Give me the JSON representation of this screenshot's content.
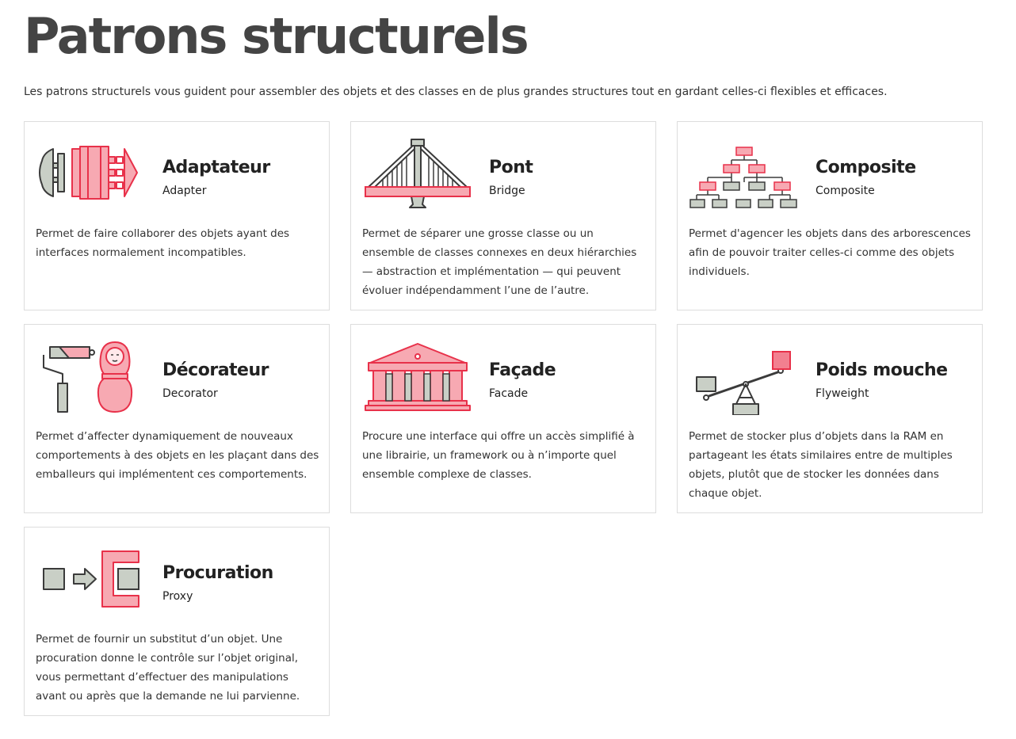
{
  "page": {
    "title": "Patrons structurels",
    "intro": "Les patrons structurels vous guident pour assembler des objets et des classes en de plus grandes structures tout en gardant celles-ci flexibles et efficaces."
  },
  "colors": {
    "accent_red": "#e8314a",
    "accent_pink": "#f7a9b2",
    "gray_fill": "#c9cfc6",
    "outline": "#3b3b3b"
  },
  "patterns": [
    {
      "name": "Adaptateur",
      "english": "Adapter",
      "icon": "adapter-illustration",
      "description": "Permet de faire collaborer des objets ayant des interfaces normalement incompatibles."
    },
    {
      "name": "Pont",
      "english": "Bridge",
      "icon": "bridge-illustration",
      "description": "Permet de séparer une grosse classe ou un ensemble de classes connexes en deux hiérarchies — abstraction et implémentation — qui peuvent évoluer indépendamment l’une de l’autre."
    },
    {
      "name": "Composite",
      "english": "Composite",
      "icon": "composite-tree-illustration",
      "description": "Permet d'agencer les objets dans des arborescences afin de pouvoir traiter celles-ci comme des objets individuels."
    },
    {
      "name": "Décorateur",
      "english": "Decorator",
      "icon": "decorator-illustration",
      "description": "Permet d’affecter dynamiquement de nouveaux comportements à des objets en les plaçant dans des emballeurs qui implémentent ces comportements."
    },
    {
      "name": "Façade",
      "english": "Facade",
      "icon": "facade-building-illustration",
      "description": "Procure une interface qui offre un accès simplifié à une librairie, un framework ou à n’importe quel ensemble complexe de classes."
    },
    {
      "name": "Poids mouche",
      "english": "Flyweight",
      "icon": "flyweight-seesaw-illustration",
      "description": "Permet de stocker plus d’objets dans la RAM en partageant les états similaires entre de multiples objets, plutôt que de stocker les données dans chaque objet."
    },
    {
      "name": "Procuration",
      "english": "Proxy",
      "icon": "proxy-illustration",
      "description": "Permet de fournir un substitut d’un objet. Une procuration donne le contrôle sur l’objet original, vous permettant d’effectuer des manipulations avant ou après que la demande ne lui parvienne."
    }
  ]
}
